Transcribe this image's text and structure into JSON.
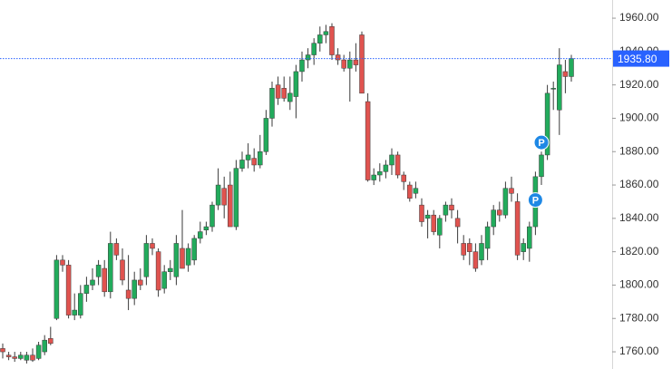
{
  "chart_data": {
    "type": "candlestick",
    "colors": {
      "up": "#22ab5c",
      "down": "#e0534f"
    },
    "ylim": [
      1749.7,
      1970.9
    ],
    "yticks": [
      {
        "value": 1760,
        "label": "1760.00"
      },
      {
        "value": 1780,
        "label": "1780.00"
      },
      {
        "value": 1800,
        "label": "1800.00"
      },
      {
        "value": 1820,
        "label": "1820.00"
      },
      {
        "value": 1840,
        "label": "1840.00"
      },
      {
        "value": 1860,
        "label": "1860.00"
      },
      {
        "value": 1880,
        "label": "1880.00"
      },
      {
        "value": 1900,
        "label": "1900.00"
      },
      {
        "value": 1920,
        "label": "1920.00"
      },
      {
        "value": 1940,
        "label": "1940.00"
      },
      {
        "value": 1960,
        "label": "1960.00"
      }
    ],
    "price_line": {
      "value": 1935.8,
      "label": "1935.80",
      "color": "#2962ff"
    },
    "markers": [
      {
        "candle": 89,
        "value": 1851,
        "label": "P",
        "color": "#1e88e5"
      },
      {
        "candle": 90,
        "value": 1885.5,
        "label": "P",
        "color": "#1e88e5"
      }
    ],
    "candles": [
      [
        1762,
        1765,
        1756,
        1760
      ],
      [
        1758,
        1760,
        1755,
        1757
      ],
      [
        1757,
        1760,
        1754,
        1756
      ],
      [
        1756,
        1760,
        1755,
        1758
      ],
      [
        1755,
        1760,
        1753,
        1758
      ],
      [
        1758,
        1762,
        1754,
        1755
      ],
      [
        1756,
        1766,
        1755,
        1764
      ],
      [
        1760,
        1770,
        1758,
        1767
      ],
      [
        1768,
        1775,
        1764,
        1765
      ],
      [
        1780,
        1818,
        1779,
        1815
      ],
      [
        1815,
        1818,
        1808,
        1812
      ],
      [
        1812,
        1815,
        1780,
        1782
      ],
      [
        1782,
        1795,
        1779,
        1785
      ],
      [
        1782,
        1800,
        1780,
        1795
      ],
      [
        1795,
        1805,
        1790,
        1800
      ],
      [
        1800,
        1810,
        1797,
        1803
      ],
      [
        1805,
        1815,
        1800,
        1812
      ],
      [
        1810,
        1815,
        1793,
        1796
      ],
      [
        1796,
        1832,
        1792,
        1825
      ],
      [
        1825,
        1828,
        1815,
        1818
      ],
      [
        1815,
        1822,
        1800,
        1803
      ],
      [
        1797,
        1818,
        1785,
        1792
      ],
      [
        1792,
        1808,
        1788,
        1803
      ],
      [
        1803,
        1810,
        1797,
        1800
      ],
      [
        1805,
        1830,
        1800,
        1825
      ],
      [
        1825,
        1828,
        1818,
        1822
      ],
      [
        1820,
        1822,
        1793,
        1797
      ],
      [
        1798,
        1812,
        1795,
        1808
      ],
      [
        1808,
        1815,
        1803,
        1810
      ],
      [
        1805,
        1830,
        1800,
        1825
      ],
      [
        1822,
        1845,
        1810,
        1810
      ],
      [
        1812,
        1825,
        1808,
        1822
      ],
      [
        1815,
        1830,
        1812,
        1828
      ],
      [
        1828,
        1838,
        1825,
        1832
      ],
      [
        1833,
        1838,
        1830,
        1835
      ],
      [
        1835,
        1850,
        1832,
        1848
      ],
      [
        1848,
        1870,
        1845,
        1860
      ],
      [
        1858,
        1865,
        1840,
        1848
      ],
      [
        1860,
        1868,
        1835,
        1835
      ],
      [
        1835,
        1875,
        1833,
        1870
      ],
      [
        1870,
        1880,
        1868,
        1875
      ],
      [
        1875,
        1885,
        1870,
        1878
      ],
      [
        1876,
        1882,
        1868,
        1872
      ],
      [
        1872,
        1890,
        1870,
        1880
      ],
      [
        1880,
        1905,
        1878,
        1900
      ],
      [
        1900,
        1922,
        1895,
        1918
      ],
      [
        1920,
        1925,
        1908,
        1912
      ],
      [
        1918,
        1925,
        1910,
        1912
      ],
      [
        1910,
        1925,
        1905,
        1915
      ],
      [
        1913,
        1932,
        1900,
        1928
      ],
      [
        1928,
        1940,
        1922,
        1935
      ],
      [
        1935,
        1942,
        1930,
        1938
      ],
      [
        1938,
        1948,
        1932,
        1945
      ],
      [
        1945,
        1955,
        1940,
        1950
      ],
      [
        1950,
        1956,
        1945,
        1952
      ],
      [
        1955,
        1957,
        1935,
        1938
      ],
      [
        1938,
        1942,
        1932,
        1935
      ],
      [
        1935,
        1938,
        1928,
        1930
      ],
      [
        1930,
        1940,
        1910,
        1935
      ],
      [
        1935,
        1945,
        1928,
        1932
      ],
      [
        1950,
        1952,
        1915,
        1915
      ],
      [
        1910,
        1915,
        1862,
        1863
      ],
      [
        1863,
        1870,
        1860,
        1866
      ],
      [
        1866,
        1873,
        1862,
        1868
      ],
      [
        1868,
        1875,
        1864,
        1872
      ],
      [
        1872,
        1882,
        1866,
        1878
      ],
      [
        1878,
        1880,
        1864,
        1866
      ],
      [
        1866,
        1868,
        1857,
        1862
      ],
      [
        1860,
        1862,
        1850,
        1852
      ],
      [
        1855,
        1862,
        1852,
        1858
      ],
      [
        1848,
        1852,
        1835,
        1838
      ],
      [
        1840,
        1845,
        1828,
        1842
      ],
      [
        1842,
        1845,
        1830,
        1832
      ],
      [
        1830,
        1842,
        1822,
        1840
      ],
      [
        1842,
        1850,
        1838,
        1848
      ],
      [
        1848,
        1852,
        1840,
        1845
      ],
      [
        1840,
        1845,
        1825,
        1835
      ],
      [
        1825,
        1830,
        1815,
        1818
      ],
      [
        1825,
        1828,
        1812,
        1820
      ],
      [
        1820,
        1825,
        1808,
        1810
      ],
      [
        1815,
        1830,
        1812,
        1825
      ],
      [
        1822,
        1838,
        1815,
        1835
      ],
      [
        1835,
        1848,
        1830,
        1845
      ],
      [
        1845,
        1850,
        1838,
        1842
      ],
      [
        1842,
        1862,
        1840,
        1858
      ],
      [
        1858,
        1865,
        1850,
        1855
      ],
      [
        1850,
        1855,
        1815,
        1818
      ],
      [
        1820,
        1828,
        1815,
        1825
      ],
      [
        1822,
        1838,
        1814,
        1835
      ],
      [
        1835,
        1868,
        1830,
        1865
      ],
      [
        1865,
        1880,
        1860,
        1878
      ],
      [
        1878,
        1920,
        1875,
        1915
      ],
      [
        1918,
        1922,
        1905,
        1918
      ],
      [
        1905,
        1942,
        1890,
        1932
      ],
      [
        1928,
        1935,
        1915,
        1925
      ],
      [
        1925,
        1938,
        1922,
        1935.8
      ]
    ]
  }
}
